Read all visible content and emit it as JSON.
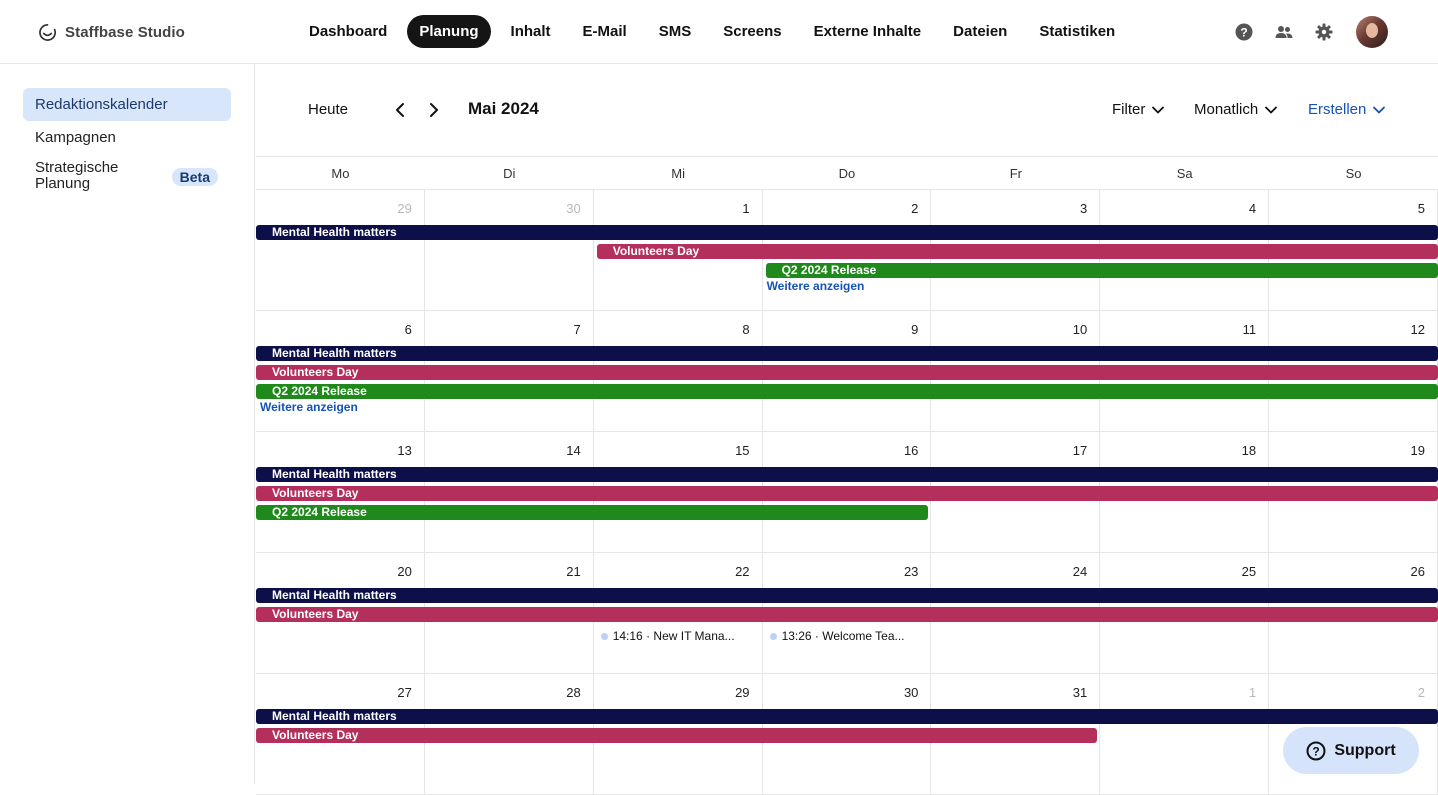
{
  "app": {
    "brand": "Staffbase Studio"
  },
  "nav": [
    {
      "label": "Dashboard",
      "active": false
    },
    {
      "label": "Planung",
      "active": true
    },
    {
      "label": "Inhalt",
      "active": false
    },
    {
      "label": "E-Mail",
      "active": false
    },
    {
      "label": "SMS",
      "active": false
    },
    {
      "label": "Screens",
      "active": false
    },
    {
      "label": "Externe Inhalte",
      "active": false
    },
    {
      "label": "Dateien",
      "active": false
    },
    {
      "label": "Statistiken",
      "active": false
    }
  ],
  "top_icons": [
    "help-icon",
    "people-icon",
    "gear-icon",
    "avatar"
  ],
  "sidebar": {
    "items": [
      {
        "label": "Redaktionskalender",
        "active": true
      },
      {
        "label": "Kampagnen",
        "active": false
      },
      {
        "label": "Strategische Planung",
        "active": false,
        "badge": "Beta"
      }
    ]
  },
  "toolbar": {
    "today": "Heute",
    "month": "Mai 2024",
    "filter": "Filter",
    "view": "Monatlich",
    "create": "Erstellen"
  },
  "weekdays": [
    "Mo",
    "Di",
    "Mi",
    "Do",
    "Fr",
    "Sa",
    "So"
  ],
  "weeks": [
    {
      "days": [
        {
          "num": "29",
          "muted": true
        },
        {
          "num": "30",
          "muted": true
        },
        {
          "num": "1"
        },
        {
          "num": "2"
        },
        {
          "num": "3"
        },
        {
          "num": "4"
        },
        {
          "num": "5"
        }
      ],
      "events": [
        {
          "label": "Mental Health matters",
          "color": "#0c0f48",
          "start": 0,
          "end": 7,
          "row": 0
        },
        {
          "label": "Volunteers Day",
          "color": "#b42f5c",
          "start": 2,
          "end": 7,
          "row": 1
        },
        {
          "label": "Q2 2024 Release",
          "color": "#1f8a1b",
          "start": 3,
          "end": 7,
          "row": 2
        }
      ],
      "more": {
        "label": "Weitere anzeigen",
        "col": 3
      }
    },
    {
      "days": [
        {
          "num": "6"
        },
        {
          "num": "7"
        },
        {
          "num": "8"
        },
        {
          "num": "9"
        },
        {
          "num": "10"
        },
        {
          "num": "11"
        },
        {
          "num": "12"
        }
      ],
      "events": [
        {
          "label": "Mental Health matters",
          "color": "#0c0f48",
          "start": 0,
          "end": 7,
          "row": 0
        },
        {
          "label": "Volunteers Day",
          "color": "#b42f5c",
          "start": 0,
          "end": 7,
          "row": 1
        },
        {
          "label": "Q2 2024 Release",
          "color": "#1f8a1b",
          "start": 0,
          "end": 7,
          "row": 2
        }
      ],
      "more": {
        "label": "Weitere anzeigen",
        "col": 0
      }
    },
    {
      "days": [
        {
          "num": "13"
        },
        {
          "num": "14"
        },
        {
          "num": "15"
        },
        {
          "num": "16"
        },
        {
          "num": "17"
        },
        {
          "num": "18"
        },
        {
          "num": "19"
        }
      ],
      "events": [
        {
          "label": "Mental Health matters",
          "color": "#0c0f48",
          "start": 0,
          "end": 7,
          "row": 0
        },
        {
          "label": "Volunteers Day",
          "color": "#b42f5c",
          "start": 0,
          "end": 7,
          "row": 1
        },
        {
          "label": "Q2 2024 Release",
          "color": "#1f8a1b",
          "start": 0,
          "end": 4,
          "row": 2
        }
      ]
    },
    {
      "days": [
        {
          "num": "20"
        },
        {
          "num": "21"
        },
        {
          "num": "22"
        },
        {
          "num": "23"
        },
        {
          "num": "24"
        },
        {
          "num": "25"
        },
        {
          "num": "26"
        }
      ],
      "events": [
        {
          "label": "Mental Health matters",
          "color": "#0c0f48",
          "start": 0,
          "end": 7,
          "row": 0
        },
        {
          "label": "Volunteers Day",
          "color": "#b42f5c",
          "start": 0,
          "end": 7,
          "row": 1
        }
      ],
      "posts": [
        {
          "label": "14:16 · New IT Mana...",
          "col": 2
        },
        {
          "label": "13:26 · Welcome Tea...",
          "col": 3
        }
      ]
    },
    {
      "days": [
        {
          "num": "27"
        },
        {
          "num": "28"
        },
        {
          "num": "29"
        },
        {
          "num": "30"
        },
        {
          "num": "31"
        },
        {
          "num": "1",
          "muted": true
        },
        {
          "num": "2",
          "muted": true
        }
      ],
      "events": [
        {
          "label": "Mental Health matters",
          "color": "#0c0f48",
          "start": 0,
          "end": 7,
          "row": 0
        },
        {
          "label": "Volunteers Day",
          "color": "#b42f5c",
          "start": 0,
          "end": 5,
          "row": 1
        }
      ]
    }
  ],
  "support": {
    "label": "Support"
  }
}
